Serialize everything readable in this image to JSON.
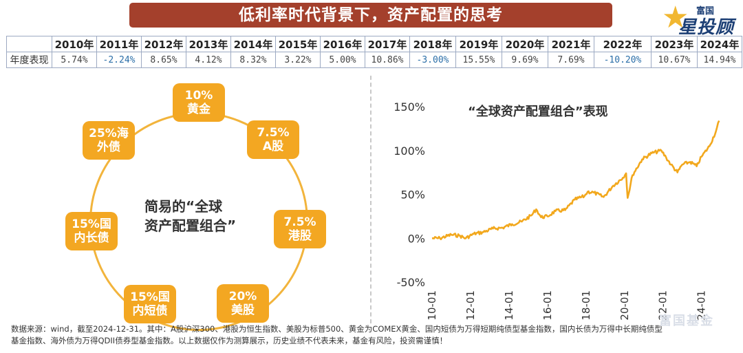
{
  "banner": {
    "title": "低利率时代背景下，资产配置的思考"
  },
  "brand": {
    "line1": "富国",
    "line2": "星投顾",
    "watermark": "富国基金"
  },
  "table": {
    "row_label": "年度表现",
    "years": [
      "2010年",
      "2011年",
      "2012年",
      "2013年",
      "2014年",
      "2015年",
      "2016年",
      "2017年",
      "2018年",
      "2019年",
      "2020年",
      "2021年",
      "2022年",
      "2023年",
      "2024年"
    ],
    "values": [
      "5.74%",
      "-2.24%",
      "8.65%",
      "4.12%",
      "8.32%",
      "3.22%",
      "5.00%",
      "10.86%",
      "-3.00%",
      "15.55%",
      "9.69%",
      "7.69%",
      "-10.20%",
      "10.67%",
      "14.94%"
    ]
  },
  "portfolio": {
    "center_text_line1": "简易的“全球",
    "center_text_line2": "资产配置组合”",
    "nodes": [
      {
        "pct": "10%",
        "name": "黄金"
      },
      {
        "pct": "7.5%",
        "name": "A股"
      },
      {
        "pct": "7.5%",
        "name": "港股"
      },
      {
        "pct": "20%",
        "name": "美股"
      },
      {
        "pct": "15%国",
        "name": "内短债"
      },
      {
        "pct": "15%国",
        "name": "内长债"
      },
      {
        "pct": "25%海",
        "name": "外债"
      }
    ]
  },
  "footer": {
    "line1": "数据来源：wind，截至2024-12-31。其中：A股沪深300、港股为恒生指数、美股为标普500、黄金为COMEX黄金、国内短债为万得短期纯债型基金指数，国内长债为万得中长期纯债型",
    "line2": "基金指数、海外债为万得QDII债券型基金指数。以上数据仅作为测算展示，历史业绩不代表未来，基金有风险，投资需谨慎！"
  },
  "chart_data": {
    "type": "line",
    "title": "“全球资产配置组合”表现",
    "xlabel": "",
    "ylabel": "",
    "ylim": [
      -0.5,
      1.5
    ],
    "xlim": [
      "2010-01-01",
      "2025-01-31"
    ],
    "y_ticks": [
      -0.5,
      0,
      0.5,
      1.0,
      1.5
    ],
    "y_tick_labels": [
      "-50%",
      "0%",
      "50%",
      "100%",
      "150%"
    ],
    "x_ticks": [
      "2010-01",
      "2012-01",
      "2014-01",
      "2016-01",
      "2018-01",
      "2020-01",
      "2022-01",
      "2024-01"
    ],
    "grid": false,
    "color": "#f2a81d",
    "series": [
      {
        "x": [
          "2010-01",
          "2010-06",
          "2011-01",
          "2011-06",
          "2011-10",
          "2012-03",
          "2012-09",
          "2013-03",
          "2013-09",
          "2014-03",
          "2014-09",
          "2015-03",
          "2015-06",
          "2015-09",
          "2016-01",
          "2016-06",
          "2016-12",
          "2017-06",
          "2017-12",
          "2018-02",
          "2018-06",
          "2018-12",
          "2019-06",
          "2019-12",
          "2020-02",
          "2020-03",
          "2020-06",
          "2020-12",
          "2021-06",
          "2021-12",
          "2022-03",
          "2022-06",
          "2022-10",
          "2023-01",
          "2023-06",
          "2023-10",
          "2024-01",
          "2024-06",
          "2024-10",
          "2024-12"
        ],
        "y": [
          0.0,
          0.0,
          0.04,
          0.03,
          0.0,
          0.05,
          0.07,
          0.11,
          0.12,
          0.16,
          0.19,
          0.26,
          0.33,
          0.24,
          0.25,
          0.31,
          0.32,
          0.44,
          0.48,
          0.53,
          0.52,
          0.47,
          0.6,
          0.69,
          0.74,
          0.46,
          0.72,
          0.9,
          0.97,
          1.0,
          0.92,
          0.84,
          0.75,
          0.84,
          0.87,
          0.82,
          0.93,
          1.05,
          1.22,
          1.34
        ]
      }
    ]
  }
}
